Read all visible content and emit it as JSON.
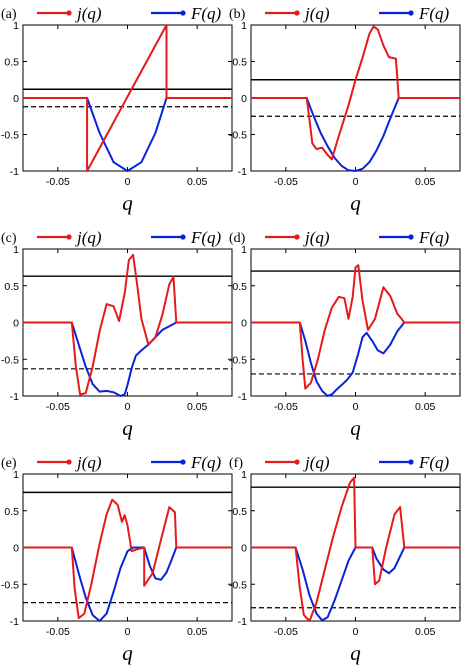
{
  "chart_data": [
    {
      "type": "line",
      "panel": "(a)",
      "xlabel": "q",
      "xlim": [
        -0.075,
        0.075
      ],
      "ylim": [
        -1,
        1
      ],
      "xticks": [
        "-0.05",
        "0",
        "0.05"
      ],
      "yticks": [
        "-1",
        "-0.5",
        "0",
        "0.5",
        "1"
      ],
      "legend": [
        "j(q)",
        "F(q)"
      ],
      "legend_placement": "top",
      "hlines": {
        "solid": 0.12,
        "dashed": -0.12
      },
      "series": [
        {
          "name": "j(q)",
          "color": "#e41a1c",
          "x": [
            -0.075,
            -0.029,
            -0.029,
            0.028,
            0.028,
            0.075
          ],
          "y": [
            0,
            0,
            -1,
            1,
            0,
            0
          ]
        },
        {
          "name": "F(q)",
          "color": "#0a22d9",
          "x": [
            -0.075,
            -0.029,
            -0.02,
            -0.01,
            0,
            0.01,
            0.02,
            0.028,
            0.075
          ],
          "y": [
            0,
            0,
            -0.48,
            -0.88,
            -1,
            -0.88,
            -0.48,
            0,
            0
          ]
        }
      ]
    },
    {
      "type": "line",
      "panel": "(b)",
      "xlabel": "q",
      "xlim": [
        -0.075,
        0.075
      ],
      "ylim": [
        -1,
        1
      ],
      "xticks": [
        "-0.05",
        "0",
        "0.05"
      ],
      "yticks": [
        "-1",
        "-0.5",
        "0",
        "0.5",
        "1"
      ],
      "legend": [
        "j(q)",
        "F(q)"
      ],
      "legend_placement": "top",
      "hlines": {
        "solid": 0.25,
        "dashed": -0.25
      },
      "series": [
        {
          "name": "j(q)",
          "color": "#e41a1c",
          "x": [
            -0.075,
            -0.035,
            -0.033,
            -0.031,
            -0.028,
            -0.024,
            -0.02,
            -0.017,
            -0.012,
            -0.005,
            0,
            0.005,
            0.01,
            0.013,
            0.016,
            0.02,
            0.024,
            0.029,
            0.031,
            0.075
          ],
          "y": [
            0,
            0,
            -0.3,
            -0.62,
            -0.7,
            -0.68,
            -0.78,
            -0.84,
            -0.52,
            -0.1,
            0.25,
            0.55,
            0.88,
            0.98,
            0.94,
            0.72,
            0.56,
            0.54,
            0,
            0
          ]
        },
        {
          "name": "F(q)",
          "color": "#0a22d9",
          "x": [
            -0.075,
            -0.035,
            -0.03,
            -0.025,
            -0.02,
            -0.015,
            -0.01,
            -0.005,
            0,
            0.005,
            0.01,
            0.015,
            0.02,
            0.025,
            0.031,
            0.075
          ],
          "y": [
            0,
            0,
            -0.25,
            -0.48,
            -0.66,
            -0.82,
            -0.93,
            -0.99,
            -1,
            -0.97,
            -0.88,
            -0.72,
            -0.52,
            -0.28,
            0,
            0
          ]
        }
      ]
    },
    {
      "type": "line",
      "panel": "(c)",
      "xlabel": "q",
      "xlim": [
        -0.075,
        0.075
      ],
      "ylim": [
        -1,
        1
      ],
      "xticks": [
        "-0.05",
        "0",
        "0.05"
      ],
      "yticks": [
        "-1",
        "-0.5",
        "0",
        "0.5",
        "1"
      ],
      "legend": [
        "j(q)",
        "F(q)"
      ],
      "legend_placement": "top",
      "hlines": {
        "solid": 0.63,
        "dashed": -0.63
      },
      "series": [
        {
          "name": "j(q)",
          "color": "#e41a1c",
          "x": [
            -0.075,
            -0.04,
            -0.037,
            -0.034,
            -0.03,
            -0.025,
            -0.02,
            -0.015,
            -0.01,
            -0.006,
            -0.002,
            0.001,
            0.004,
            0.007,
            0.01,
            0.015,
            0.02,
            0.025,
            0.03,
            0.033,
            0.035,
            0.075
          ],
          "y": [
            0,
            0,
            -0.6,
            -0.98,
            -0.96,
            -0.6,
            -0.12,
            0.25,
            0.22,
            0.02,
            0.4,
            0.85,
            0.92,
            0.5,
            0.05,
            -0.3,
            -0.2,
            0.1,
            0.52,
            0.62,
            0,
            0
          ]
        },
        {
          "name": "F(q)",
          "color": "#0a22d9",
          "x": [
            -0.075,
            -0.04,
            -0.035,
            -0.03,
            -0.025,
            -0.02,
            -0.015,
            -0.01,
            -0.005,
            -0.002,
            0,
            0.003,
            0.006,
            0.01,
            0.015,
            0.02,
            0.025,
            0.03,
            0.035,
            0.075
          ],
          "y": [
            0,
            0,
            -0.3,
            -0.6,
            -0.84,
            -0.94,
            -0.93,
            -0.95,
            -1,
            -0.98,
            -0.85,
            -0.62,
            -0.45,
            -0.38,
            -0.3,
            -0.2,
            -0.1,
            -0.05,
            0,
            0
          ]
        }
      ]
    },
    {
      "type": "line",
      "panel": "(d)",
      "xlabel": "q",
      "xlim": [
        -0.075,
        0.075
      ],
      "ylim": [
        -1,
        1
      ],
      "xticks": [
        "-0.05",
        "0",
        "0.05"
      ],
      "yticks": [
        "-1",
        "-0.5",
        "0",
        "0.5",
        "1"
      ],
      "legend": [
        "j(q)",
        "F(q)"
      ],
      "legend_placement": "top",
      "hlines": {
        "solid": 0.7,
        "dashed": -0.7
      },
      "series": [
        {
          "name": "j(q)",
          "color": "#e41a1c",
          "x": [
            -0.075,
            -0.04,
            -0.038,
            -0.036,
            -0.032,
            -0.027,
            -0.022,
            -0.017,
            -0.012,
            -0.008,
            -0.005,
            -0.002,
            0,
            0.002,
            0.005,
            0.009,
            0.014,
            0.02,
            0.025,
            0.03,
            0.033,
            0.035,
            0.075
          ],
          "y": [
            0,
            0,
            -0.5,
            -0.9,
            -0.82,
            -0.5,
            -0.1,
            0.2,
            0.35,
            0.33,
            0.05,
            0.35,
            0.75,
            0.78,
            0.3,
            -0.1,
            0.05,
            0.48,
            0.36,
            0.12,
            0.05,
            0,
            0
          ]
        },
        {
          "name": "F(q)",
          "color": "#0a22d9",
          "x": [
            -0.075,
            -0.04,
            -0.036,
            -0.032,
            -0.028,
            -0.024,
            -0.02,
            -0.017,
            -0.014,
            -0.01,
            -0.006,
            -0.002,
            0.002,
            0.005,
            0.008,
            0.012,
            0.016,
            0.02,
            0.025,
            0.03,
            0.035,
            0.075
          ],
          "y": [
            0,
            0,
            -0.25,
            -0.55,
            -0.8,
            -0.93,
            -1,
            -0.98,
            -0.92,
            -0.85,
            -0.78,
            -0.68,
            -0.42,
            -0.2,
            -0.14,
            -0.25,
            -0.38,
            -0.42,
            -0.3,
            -0.12,
            0,
            0
          ]
        }
      ]
    },
    {
      "type": "line",
      "panel": "(e)",
      "xlabel": "q",
      "xlim": [
        -0.075,
        0.075
      ],
      "ylim": [
        -1,
        1
      ],
      "xticks": [
        "-0.05",
        "0",
        "0.05"
      ],
      "yticks": [
        "-1",
        "-0.5",
        "0",
        "0.5",
        "1"
      ],
      "legend": [
        "j(q)",
        "F(q)"
      ],
      "legend_placement": "top",
      "hlines": {
        "solid": 0.75,
        "dashed": -0.75
      },
      "series": [
        {
          "name": "j(q)",
          "color": "#e41a1c",
          "x": [
            -0.075,
            -0.04,
            -0.038,
            -0.035,
            -0.031,
            -0.026,
            -0.02,
            -0.015,
            -0.011,
            -0.007,
            -0.004,
            -0.002,
            0,
            0.003,
            0.006,
            0.012,
            0.012,
            0.018,
            0.024,
            0.03,
            0.034,
            0.035,
            0.075
          ],
          "y": [
            0,
            0,
            -0.55,
            -0.96,
            -0.9,
            -0.5,
            0.05,
            0.45,
            0.65,
            0.58,
            0.35,
            0.44,
            0.3,
            -0.05,
            -0.03,
            0,
            -0.52,
            -0.35,
            0.1,
            0.55,
            0.48,
            0,
            0
          ]
        },
        {
          "name": "F(q)",
          "color": "#0a22d9",
          "x": [
            -0.075,
            -0.04,
            -0.035,
            -0.03,
            -0.025,
            -0.02,
            -0.015,
            -0.01,
            -0.005,
            0,
            0.004,
            0.012,
            0.016,
            0.02,
            0.024,
            0.028,
            0.032,
            0.035,
            0.075
          ],
          "y": [
            0,
            0,
            -0.35,
            -0.68,
            -0.92,
            -1,
            -0.9,
            -0.6,
            -0.28,
            -0.05,
            0,
            0,
            -0.25,
            -0.42,
            -0.44,
            -0.34,
            -0.15,
            0,
            0
          ]
        }
      ]
    },
    {
      "type": "line",
      "panel": "(f)",
      "xlabel": "q",
      "xlim": [
        -0.075,
        0.075
      ],
      "ylim": [
        -1,
        1
      ],
      "xticks": [
        "-0.05",
        "0",
        "0.05"
      ],
      "yticks": [
        "-1",
        "-0.5",
        "0",
        "0.5",
        "1"
      ],
      "legend": [
        "j(q)",
        "F(q)"
      ],
      "legend_placement": "top",
      "hlines": {
        "solid": 0.82,
        "dashed": -0.82
      },
      "series": [
        {
          "name": "j(q)",
          "color": "#e41a1c",
          "x": [
            -0.075,
            -0.043,
            -0.04,
            -0.037,
            -0.033,
            -0.028,
            -0.022,
            -0.016,
            -0.01,
            -0.004,
            -0.001,
            0,
            0.012,
            0.014,
            0.017,
            0.022,
            0.028,
            0.032,
            0.035,
            0.075
          ],
          "y": [
            0,
            0,
            -0.55,
            -0.92,
            -1,
            -0.75,
            -0.3,
            0.15,
            0.55,
            0.88,
            0.95,
            0,
            0,
            -0.5,
            -0.45,
            0,
            0.45,
            0.55,
            0,
            0
          ]
        },
        {
          "name": "F(q)",
          "color": "#0a22d9",
          "x": [
            -0.075,
            -0.043,
            -0.038,
            -0.033,
            -0.028,
            -0.024,
            -0.02,
            -0.015,
            -0.01,
            -0.005,
            0,
            0.012,
            0.015,
            0.02,
            0.024,
            0.028,
            0.032,
            0.035,
            0.075
          ],
          "y": [
            0,
            0,
            -0.3,
            -0.65,
            -0.9,
            -0.99,
            -0.95,
            -0.72,
            -0.45,
            -0.18,
            0,
            0,
            -0.15,
            -0.3,
            -0.35,
            -0.28,
            -0.12,
            0,
            0
          ]
        }
      ]
    }
  ]
}
